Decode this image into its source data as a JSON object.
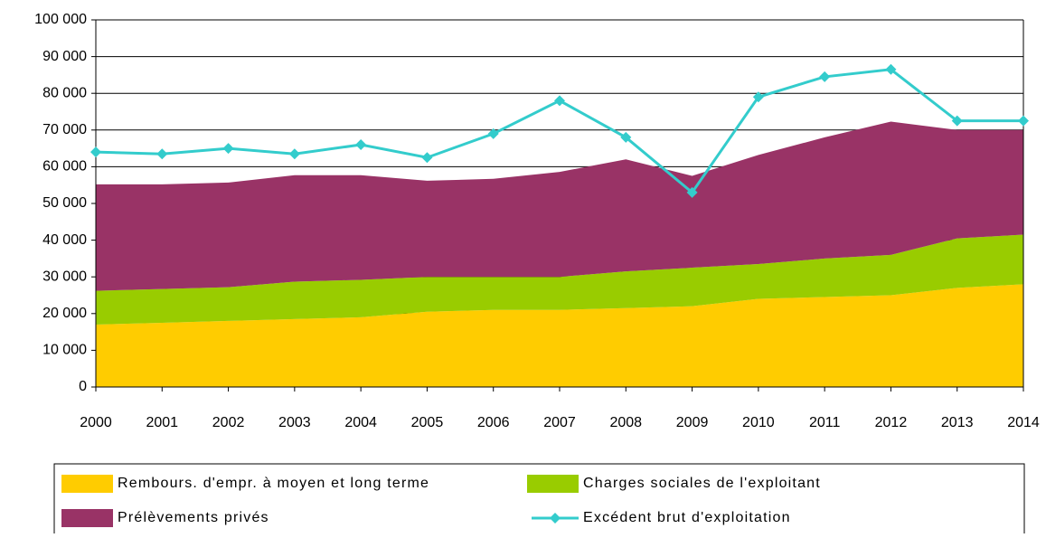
{
  "chart_data": {
    "type": "area",
    "stacked": true,
    "categories": [
      "2000",
      "2001",
      "2002",
      "2003",
      "2004",
      "2005",
      "2006",
      "2007",
      "2008",
      "2009",
      "2010",
      "2011",
      "2012",
      "2013",
      "2014"
    ],
    "ylim": [
      0,
      100000
    ],
    "yticks": [
      0,
      {
        "value": 10000,
        "label": "10 000"
      },
      {
        "value": 20000,
        "label": "20 000"
      },
      {
        "value": 30000,
        "label": "30 000"
      },
      {
        "value": 40000,
        "label": "40 000"
      },
      {
        "value": 50000,
        "label": "50 000"
      },
      {
        "value": 60000,
        "label": "60 000"
      },
      {
        "value": 70000,
        "label": "70 000"
      },
      {
        "value": 80000,
        "label": "80 000"
      },
      {
        "value": 90000,
        "label": "90 000"
      },
      {
        "value": 100000,
        "label": "100 000"
      }
    ],
    "grid": true,
    "series": [
      {
        "name": "Rembours. d'empr. à moyen et long terme",
        "color": "#ffcc00",
        "values": [
          17000,
          17500,
          18000,
          18500,
          19000,
          20500,
          21000,
          21000,
          21500,
          22000,
          24000,
          24500,
          25000,
          27000,
          28000
        ]
      },
      {
        "name": "Charges sociales de l'exploitant",
        "color": "#99cc00",
        "values": [
          9200,
          9200,
          9200,
          10200,
          10200,
          9500,
          9000,
          9000,
          10000,
          10500,
          9500,
          10500,
          11000,
          13500,
          13500
        ]
      },
      {
        "name": "Prélèvements privés",
        "color": "#993366",
        "values": [
          29000,
          28500,
          28500,
          29000,
          28500,
          26200,
          26700,
          28600,
          30500,
          25000,
          29700,
          33000,
          36300,
          29500,
          28500
        ]
      },
      {
        "name": "Excédent brut d'exploitation",
        "color": "#33cccc",
        "type": "line",
        "values": [
          64000,
          63500,
          65000,
          63500,
          66000,
          62500,
          69000,
          78000,
          68000,
          53000,
          79000,
          84500,
          86500,
          72500,
          72500
        ]
      }
    ]
  }
}
